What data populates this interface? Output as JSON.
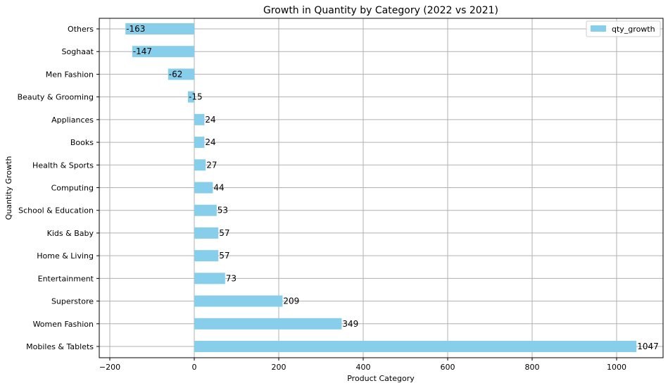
{
  "chart_data": {
    "type": "bar",
    "orientation": "horizontal",
    "title": "Growth in Quantity by Category (2022 vs 2021)",
    "xlabel": "Product Category",
    "ylabel": "Quantity Growth",
    "xlim": [
      -225,
      1110
    ],
    "xticks": [
      -200,
      0,
      200,
      400,
      600,
      800,
      1000
    ],
    "grid": true,
    "legend_position": "top-right",
    "bar_color": "#87ceeb",
    "categories": [
      "Mobiles & Tablets",
      "Women Fashion",
      "Superstore",
      "Entertainment",
      "Home & Living",
      "Kids & Baby",
      "School & Education",
      "Computing",
      "Health & Sports",
      "Books",
      "Appliances",
      "Beauty & Grooming",
      "Men Fashion",
      "Soghaat",
      "Others"
    ],
    "series": [
      {
        "name": "qty_growth",
        "values": [
          1047,
          349,
          209,
          73,
          57,
          57,
          53,
          44,
          27,
          24,
          24,
          -15,
          -62,
          -147,
          -163
        ]
      }
    ]
  }
}
